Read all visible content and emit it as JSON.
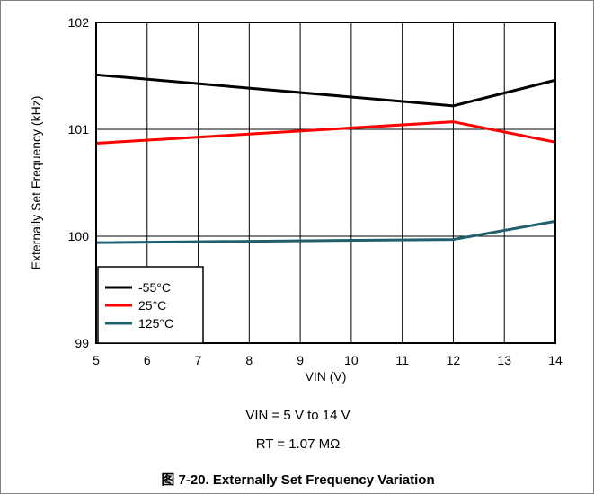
{
  "chart_data": {
    "type": "line",
    "xlabel": "VIN (V)",
    "ylabel": "Externally Set Frequency (kHz)",
    "xlim": [
      5,
      14
    ],
    "ylim": [
      99,
      102
    ],
    "x_ticks": [
      "5",
      "6",
      "7",
      "8",
      "9",
      "10",
      "11",
      "12",
      "13",
      "14"
    ],
    "y_ticks": [
      "99",
      "100",
      "101",
      "102"
    ],
    "grid": true,
    "legend_position": "bottom-left",
    "series": [
      {
        "name": "-55°C",
        "color": "#000000",
        "x": [
          5,
          12,
          14
        ],
        "y": [
          101.51,
          101.22,
          101.46
        ]
      },
      {
        "name": "25°C",
        "color": "#ff0000",
        "x": [
          5,
          12,
          14
        ],
        "y": [
          100.87,
          101.07,
          100.88
        ]
      },
      {
        "name": "125°C",
        "color": "#1f5f6e",
        "x": [
          5,
          12,
          14
        ],
        "y": [
          99.94,
          99.97,
          100.14
        ]
      }
    ]
  },
  "conditions": {
    "vin": "VIN = 5 V to 14 V",
    "rt": "RT = 1.07 MΩ"
  },
  "caption": "图 7-20. Externally Set Frequency Variation"
}
